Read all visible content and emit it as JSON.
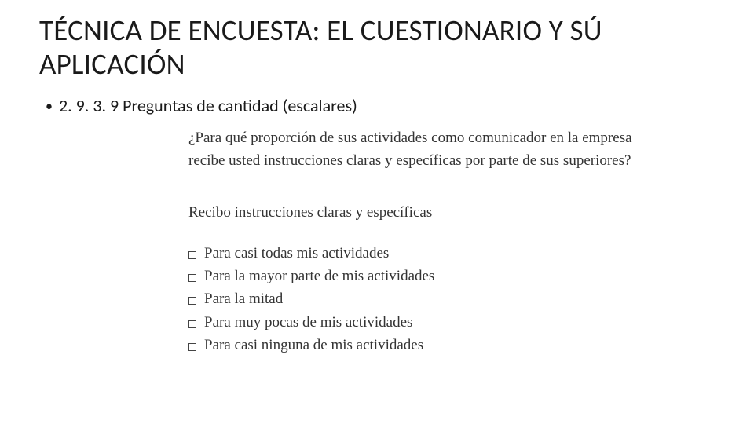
{
  "title": "TÉCNICA DE ENCUESTA: EL CUESTIONARIO Y SÚ APLICACIÓN",
  "bullet": {
    "text": "2. 9. 3. 9 Preguntas de cantidad (escalares)"
  },
  "questionnaire": {
    "question": "¿Para qué proporción de sus actividades como comunicador en la empresa recibe usted instrucciones claras y específicas por parte de sus superiores?",
    "stem": "Recibo instrucciones claras y específicas",
    "options": [
      "Para casi todas mis actividades",
      "Para la mayor parte de mis actividades",
      "Para la mitad",
      "Para muy pocas de mis actividades",
      "Para casi ninguna de mis actividades"
    ]
  },
  "colors": {
    "background": "#ffffff",
    "title_text": "#1a1a1a",
    "body_text": "#1a1a1a",
    "scan_text": "#343434",
    "checkbox_border": "#444444"
  },
  "fonts": {
    "title_family": "Calibri",
    "title_size_pt": 28,
    "body_family": "Calibri",
    "body_size_pt": 17,
    "scan_family": "Georgia",
    "scan_size_pt": 14
  }
}
